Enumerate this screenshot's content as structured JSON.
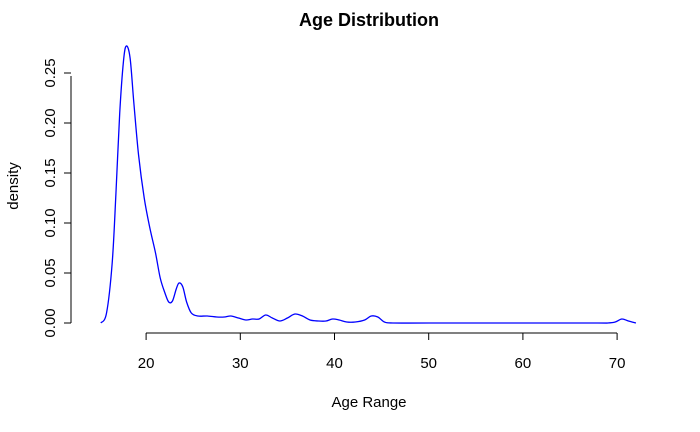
{
  "chart_data": {
    "type": "line",
    "title": "Age Distribution",
    "xlabel": "Age Range",
    "ylabel": "density",
    "xlim": [
      15,
      72
    ],
    "ylim": [
      0,
      0.28
    ],
    "x_ticks": [
      20,
      30,
      40,
      50,
      60,
      70
    ],
    "y_ticks": [
      0.0,
      0.05,
      0.1,
      0.15,
      0.2,
      0.25
    ],
    "y_tick_labels": [
      "0.00",
      "0.05",
      "0.10",
      "0.15",
      "0.20",
      "0.25"
    ],
    "grid": false,
    "legend": "none",
    "series": [
      {
        "color": "#0000ff",
        "x": [
          15.2,
          15.8,
          16.4,
          16.8,
          17.2,
          17.6,
          17.9,
          18.3,
          18.7,
          19.2,
          19.8,
          20.4,
          21.0,
          21.5,
          22.0,
          22.4,
          22.8,
          23.2,
          23.5,
          23.9,
          24.3,
          24.8,
          25.5,
          26.5,
          27.5,
          28.3,
          29.0,
          29.8,
          30.6,
          31.3,
          32.0,
          32.7,
          33.4,
          34.2,
          35.0,
          35.8,
          36.6,
          37.4,
          38.3,
          39.1,
          39.8,
          40.5,
          41.3,
          42.2,
          43.2,
          43.9,
          44.6,
          45.3,
          46.2,
          50.0,
          60.0,
          68.0,
          69.0,
          69.8,
          70.5,
          71.2,
          72.0
        ],
        "values": [
          0.0,
          0.01,
          0.06,
          0.13,
          0.21,
          0.262,
          0.277,
          0.265,
          0.22,
          0.168,
          0.125,
          0.095,
          0.07,
          0.045,
          0.03,
          0.021,
          0.022,
          0.034,
          0.04,
          0.036,
          0.021,
          0.01,
          0.007,
          0.007,
          0.006,
          0.006,
          0.007,
          0.005,
          0.003,
          0.004,
          0.004,
          0.008,
          0.005,
          0.002,
          0.005,
          0.009,
          0.007,
          0.003,
          0.002,
          0.002,
          0.004,
          0.003,
          0.001,
          0.001,
          0.003,
          0.007,
          0.006,
          0.001,
          0.0,
          0.0,
          0.0,
          0.0,
          0.0,
          0.001,
          0.004,
          0.002,
          0.0
        ]
      }
    ]
  }
}
